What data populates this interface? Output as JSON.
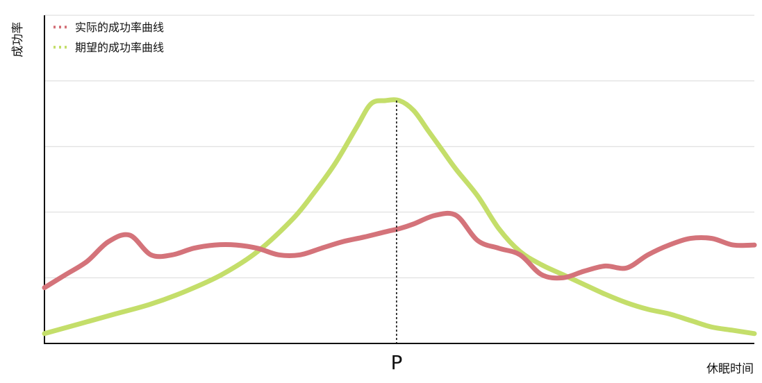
{
  "chart_data": {
    "type": "line",
    "xlabel": "休眠时间",
    "ylabel": "成功率",
    "xlim": [
      0,
      100
    ],
    "ylim": [
      0,
      5
    ],
    "grid": true,
    "legend_position": "top-left",
    "annotation": {
      "label": "P",
      "x": 49.6,
      "style": "dotted vertical line"
    },
    "series": [
      {
        "name": "实际的成功率曲线",
        "color": "#d4737a",
        "x": [
          0,
          3,
          6,
          9,
          12,
          15,
          18,
          21,
          24,
          27,
          30,
          33,
          36,
          39,
          42,
          45,
          48,
          50,
          52,
          55,
          58,
          61,
          64,
          67,
          70,
          73,
          76,
          79,
          82,
          85,
          88,
          91,
          94,
          97,
          100
        ],
        "y": [
          0.85,
          1.05,
          1.25,
          1.55,
          1.65,
          1.35,
          1.35,
          1.45,
          1.5,
          1.5,
          1.45,
          1.35,
          1.35,
          1.45,
          1.55,
          1.62,
          1.7,
          1.75,
          1.82,
          1.95,
          1.95,
          1.57,
          1.45,
          1.35,
          1.05,
          1.0,
          1.1,
          1.18,
          1.15,
          1.35,
          1.5,
          1.6,
          1.6,
          1.5,
          1.5
        ]
      },
      {
        "name": "期望的成功率曲线",
        "color": "#c4de6a",
        "x": [
          0,
          5,
          10,
          15,
          20,
          25,
          30,
          35,
          38,
          41,
          44,
          46,
          48,
          50,
          52,
          54,
          56,
          58,
          61,
          64,
          67,
          70,
          73,
          76,
          79,
          82,
          85,
          88,
          91,
          94,
          97,
          100
        ],
        "y": [
          0.15,
          0.3,
          0.45,
          0.6,
          0.8,
          1.05,
          1.4,
          1.9,
          2.3,
          2.75,
          3.3,
          3.65,
          3.7,
          3.7,
          3.55,
          3.25,
          2.95,
          2.65,
          2.25,
          1.75,
          1.4,
          1.2,
          1.05,
          0.9,
          0.75,
          0.62,
          0.52,
          0.45,
          0.35,
          0.25,
          0.2,
          0.15
        ]
      }
    ]
  }
}
